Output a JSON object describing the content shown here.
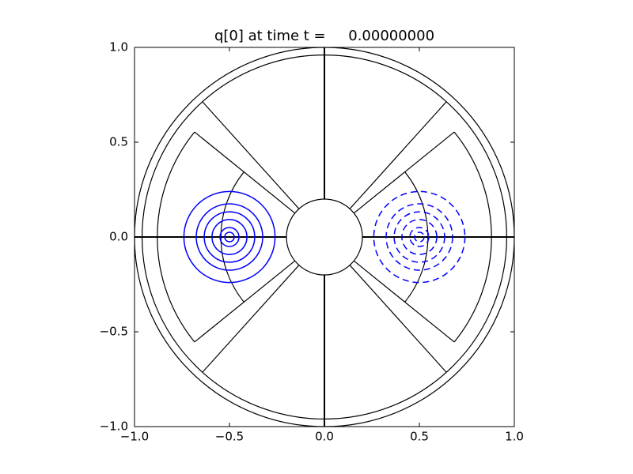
{
  "chart_data": {
    "type": "contour",
    "title": "q[0] at time t =     0.00000000",
    "xlim": [
      -1,
      1
    ],
    "ylim": [
      -1,
      1
    ],
    "xticks": [
      {
        "value": -1,
        "label": "−1.0"
      },
      {
        "value": -0.5,
        "label": "−0.5"
      },
      {
        "value": 0,
        "label": "0.0"
      },
      {
        "value": 0.5,
        "label": "0.5"
      },
      {
        "value": 1,
        "label": "1.0"
      }
    ],
    "yticks": [
      {
        "value": -1,
        "label": "−1.0"
      },
      {
        "value": -0.5,
        "label": "−0.5"
      },
      {
        "value": 0,
        "label": "0.0"
      },
      {
        "value": 0.5,
        "label": "0.5"
      },
      {
        "value": 1,
        "label": "1.0"
      }
    ],
    "geometry": {
      "color": "#000000",
      "circles": [
        1,
        0.96,
        0.2
      ],
      "rays": [
        {
          "angle": 0,
          "r": [
            0.2,
            1
          ]
        },
        {
          "angle": 90,
          "r": [
            0.2,
            1
          ]
        },
        {
          "angle": 180,
          "r": [
            0.2,
            1
          ]
        },
        {
          "angle": 270,
          "r": [
            0.2,
            1
          ]
        },
        {
          "angle": 132,
          "r": [
            0.2,
            0.96
          ]
        },
        {
          "angle": 228,
          "r": [
            0.2,
            0.96
          ]
        },
        {
          "angle": 48,
          "r": [
            0.2,
            0.96
          ]
        },
        {
          "angle": -48,
          "r": [
            0.2,
            0.96
          ]
        },
        {
          "angle": 141,
          "r": [
            0.2,
            0.88
          ]
        },
        {
          "angle": 219,
          "r": [
            0.2,
            0.88
          ]
        },
        {
          "angle": 39,
          "r": [
            0.2,
            0.88
          ]
        },
        {
          "angle": -39,
          "r": [
            0.2,
            0.88
          ]
        }
      ],
      "arcs": [
        {
          "r": 0.88,
          "angles": [
            141,
            219
          ]
        },
        {
          "r": 0.88,
          "angles": [
            -39,
            39
          ]
        },
        {
          "r": 0.545,
          "angles": [
            141,
            219
          ]
        },
        {
          "r": 0.545,
          "angles": [
            -39,
            39
          ]
        }
      ]
    },
    "contours": [
      {
        "center": [
          -0.5,
          0
        ],
        "radii": [
          0.24,
          0.175,
          0.133,
          0.092,
          0.05,
          0.025
        ],
        "color": "#0000ff",
        "linestyle": "solid"
      },
      {
        "center": [
          0.5,
          0
        ],
        "radii": [
          0.24,
          0.175,
          0.133,
          0.092,
          0.05,
          0.025
        ],
        "color": "#0000ff",
        "linestyle": "dashed"
      }
    ]
  }
}
